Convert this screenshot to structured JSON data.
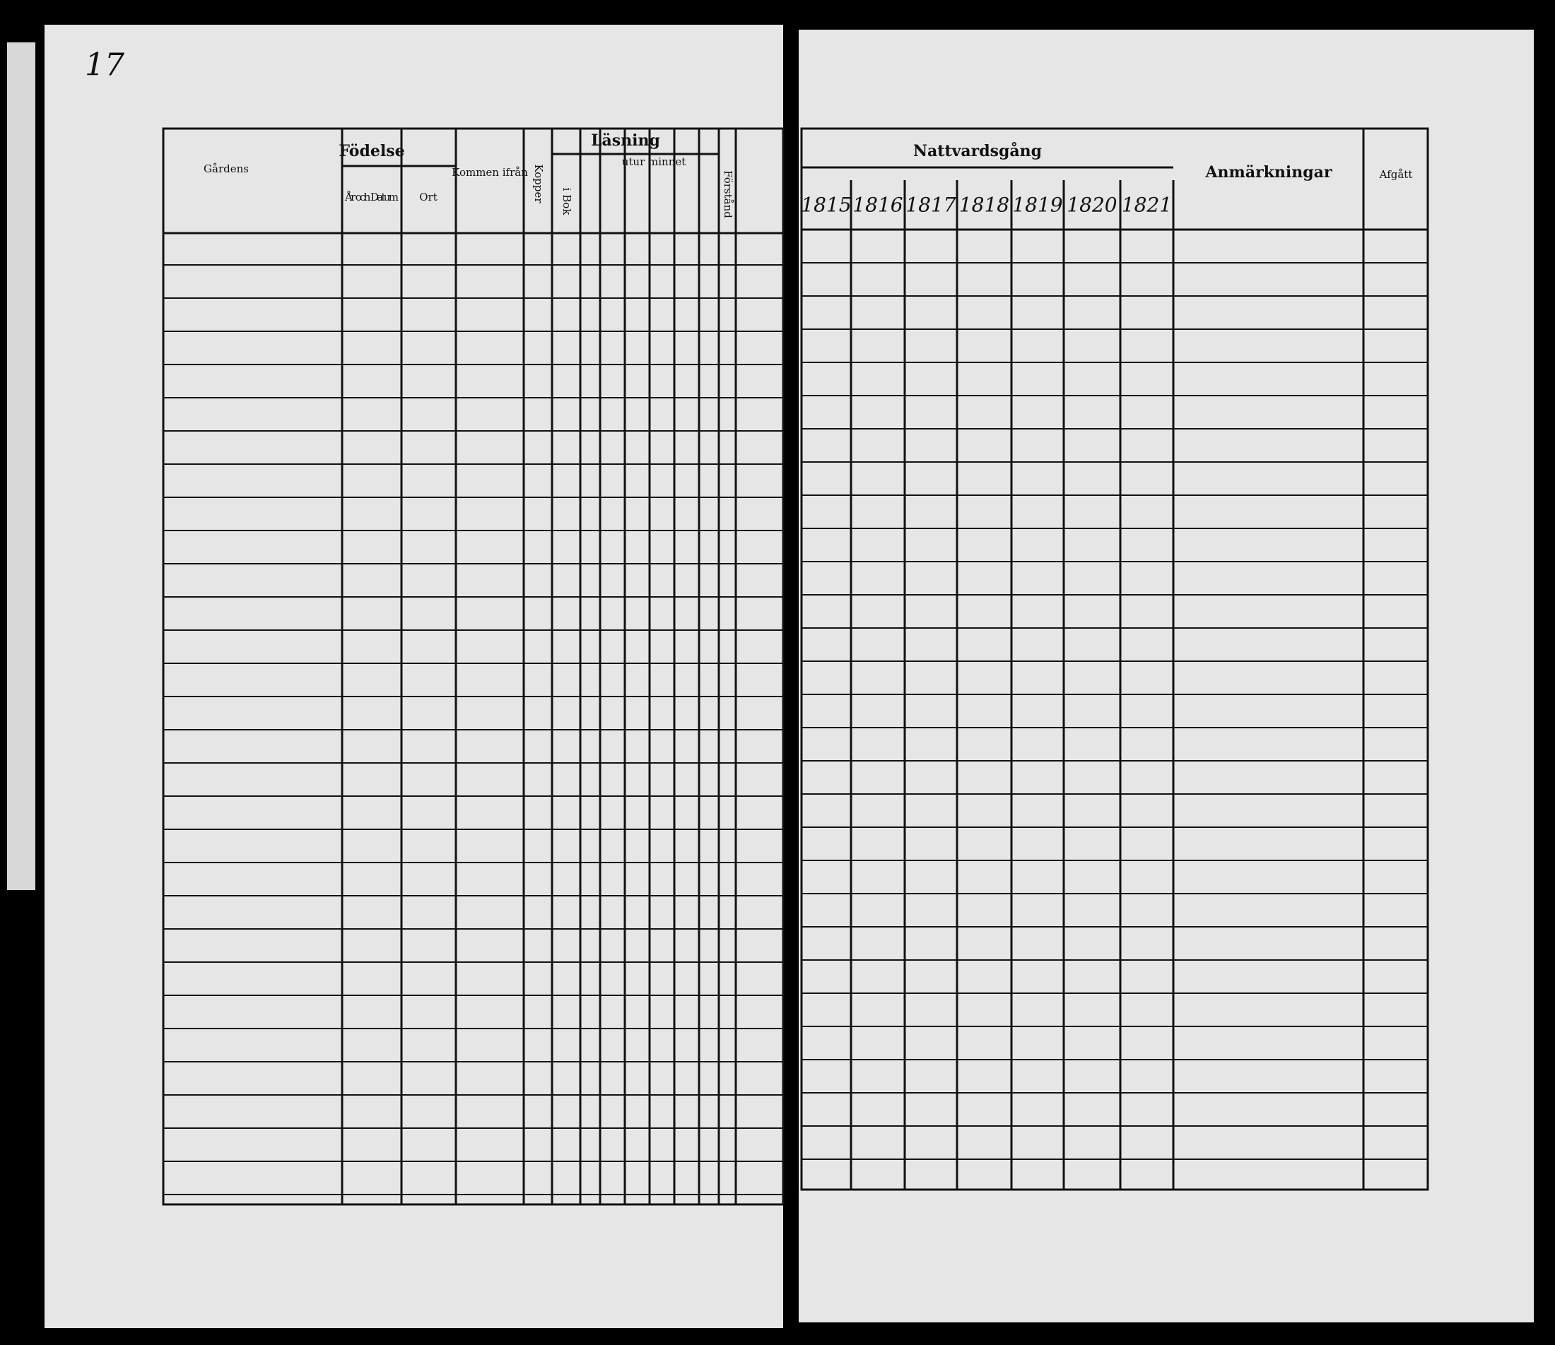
{
  "page_number": "17",
  "left_header": {
    "name_col": "Gårdens",
    "birth": "Födelse",
    "year_date": "År och Datum",
    "place": "Ort",
    "came_from": "Kommen ifrån",
    "smallpox": "Kopper",
    "reading": "Läsning",
    "by_heart": "utur minnet",
    "in_book": "i Bok",
    "understanding": "Förstånd"
  },
  "right_header": {
    "communion": "Nattvardsgång",
    "years": [
      "1815",
      "1816",
      "1817",
      "1818",
      "1819",
      "1820",
      "1821"
    ],
    "remarks": "Anmärkningar",
    "departed": "Afgått"
  }
}
